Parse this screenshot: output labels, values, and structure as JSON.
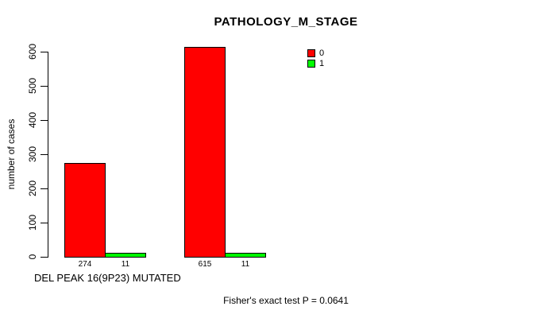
{
  "chart_data": {
    "type": "bar",
    "title": "PATHOLOGY_M_STAGE",
    "ylabel": "number of cases",
    "xlabel": "DEL PEAK 16(9P23) MUTATED",
    "series": [
      {
        "name": "0",
        "color": "#ff0000",
        "values": [
          274,
          615
        ]
      },
      {
        "name": "1",
        "color": "#00ff00",
        "values": [
          11,
          11
        ]
      }
    ],
    "bar_value_labels": [
      [
        "274",
        "11"
      ],
      [
        "615",
        "11"
      ]
    ],
    "ylim": [
      0,
      600
    ],
    "yticks": [
      0,
      100,
      200,
      300,
      400,
      500,
      600
    ],
    "grid": false,
    "legend_position": "top-right",
    "annotation": "Fisher's exact test P = 0.0641",
    "bar_border_color": "#000000",
    "text_color": "#000000",
    "background_color": "#ffffff"
  }
}
